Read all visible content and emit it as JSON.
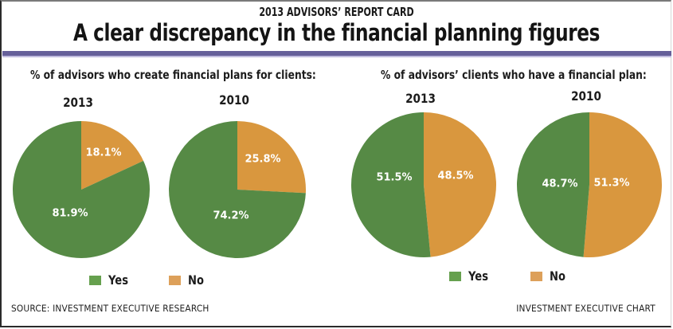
{
  "header": {
    "kicker": "2013 ADVISORS’ REPORT CARD",
    "headline": "A clear discrepancy in the financial planning figures"
  },
  "colors": {
    "yes": "#568a45",
    "no": "#d9973e",
    "legend_yes": "#66a04e",
    "legend_no": "#dda05a",
    "band": "#66609a",
    "label": "#ffffff"
  },
  "legend": {
    "yes_label": "Yes",
    "no_label": "No"
  },
  "footer": {
    "source": "SOURCE: INVESTMENT EXECUTIVE RESEARCH",
    "credit": "INVESTMENT EXECUTIVE CHART"
  },
  "chart_data": [
    {
      "type": "pie",
      "group_title": "% of advisors who create financial plans for clients:",
      "title": "2013",
      "labels": [
        "Yes",
        "No"
      ],
      "values": [
        81.9,
        18.1
      ],
      "value_labels": [
        "81.9%",
        "18.1%"
      ]
    },
    {
      "type": "pie",
      "group_title": "% of advisors who create financial plans for clients:",
      "title": "2010",
      "labels": [
        "Yes",
        "No"
      ],
      "values": [
        74.2,
        25.8
      ],
      "value_labels": [
        "74.2%",
        "25.8%"
      ]
    },
    {
      "type": "pie",
      "group_title": "% of advisors’ clients who have a financial plan:",
      "title": "2013",
      "labels": [
        "Yes",
        "No"
      ],
      "values": [
        51.5,
        48.5
      ],
      "value_labels": [
        "51.5%",
        "48.5%"
      ]
    },
    {
      "type": "pie",
      "group_title": "% of advisors’ clients who have a financial plan:",
      "title": "2010",
      "labels": [
        "Yes",
        "No"
      ],
      "values": [
        48.7,
        51.3
      ],
      "value_labels": [
        "48.7%",
        "51.3%"
      ]
    }
  ],
  "groups": {
    "left_title": "% of advisors who create financial plans for clients:",
    "right_title": "% of advisors’ clients who have a financial plan:"
  }
}
